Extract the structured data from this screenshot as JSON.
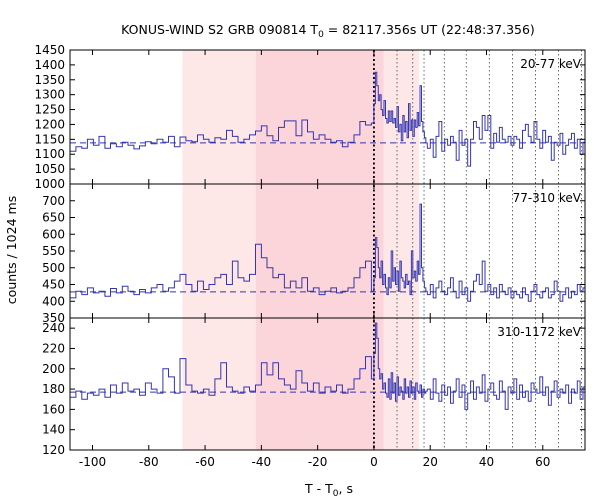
{
  "chart_data": {
    "type": "line",
    "title": "KONUS-WIND S2 GRB 090814 T",
    "title_sub": "0",
    "title_rest": " = 82117.356s UT (22:48:37.356)",
    "xlabel": "T - T",
    "xlabel_sub": "0",
    "xlabel_rest": ", s",
    "ylabel": "counts / 1024 ms",
    "xlim": [
      -108,
      75
    ],
    "x_ticks": [
      -100,
      -80,
      -60,
      -40,
      -20,
      0,
      20,
      40,
      60
    ],
    "x_tick_labels": [
      "-100",
      "-80",
      "-60",
      "-40",
      "-20",
      "0",
      "20",
      "40",
      "60"
    ],
    "shaded_regions": [
      {
        "x0": -68,
        "x1": -42,
        "color": "#fde7e7"
      },
      {
        "x0": -42,
        "x1": 3.5,
        "color": "#fbd5da"
      },
      {
        "x0": 3.5,
        "x1": 16,
        "color": "#fde7e7"
      }
    ],
    "t0_line": 0,
    "dotted_lines": [
      8.2,
      13.8,
      17.8,
      25,
      32.8,
      41,
      49.2,
      57.4,
      65.6,
      73.8
    ],
    "line_color": "#3535b0",
    "panels": [
      {
        "band": "20-77 keV",
        "ylim": [
          1000,
          1450
        ],
        "yticks": [
          1000,
          1050,
          1100,
          1150,
          1200,
          1250,
          1300,
          1350,
          1400,
          1450
        ],
        "background": 1138,
        "coarse_edges": [
          -108,
          -105.9,
          -103.8,
          -101.8,
          -99.7,
          -97.7,
          -95.6,
          -93.6,
          -91.5,
          -89.4,
          -87.4,
          -85.3,
          -83.3,
          -81.2,
          -79.1,
          -77.1,
          -75.0,
          -73.0,
          -70.9,
          -68.9,
          -66.8,
          -64.7,
          -62.7,
          -60.6,
          -58.6,
          -56.5,
          -54.4,
          -52.4,
          -50.3,
          -48.3,
          -46.2,
          -44.2,
          -42.1,
          -40.0,
          -38.0,
          -35.9,
          -33.9,
          -31.8,
          -29.7,
          -27.7,
          -25.6,
          -23.6,
          -21.5,
          -19.5,
          -17.4,
          -15.3,
          -13.3,
          -11.2,
          -9.2,
          -7.1,
          -5.0,
          -3.0,
          -0.9,
          0
        ],
        "coarse_values": [
          1110,
          1125,
          1120,
          1150,
          1130,
          1160,
          1120,
          1135,
          1125,
          1140,
          1130,
          1118,
          1128,
          1142,
          1135,
          1150,
          1140,
          1160,
          1125,
          1158,
          1145,
          1142,
          1165,
          1150,
          1140,
          1155,
          1150,
          1180,
          1160,
          1140,
          1150,
          1165,
          1178,
          1195,
          1162,
          1145,
          1190,
          1212,
          1212,
          1162,
          1215,
          1175,
          1150,
          1165,
          1150,
          1140,
          1145,
          1125,
          1140,
          1165,
          1210,
          1198,
          1205
        ],
        "fine_start": 0,
        "fine_step": 0.512,
        "fine_values": [
          1270,
          1375,
          1330,
          1280,
          1300,
          1250,
          1230,
          1280,
          1220,
          1205,
          1245,
          1210,
          1245,
          1205,
          1220,
          1190,
          1260,
          1175,
          1200,
          1145,
          1230,
          1175,
          1210,
          1155,
          1270,
          1180,
          1215,
          1160,
          1215,
          1190,
          1240,
          1195,
          1330,
          1210,
          1175,
          1155,
          1138
        ],
        "tail_start": 19,
        "tail_step": 1.024,
        "tail_values": [
          1120,
          1150,
          1090,
          1160,
          1210,
          1110,
          1150,
          1130,
          1160,
          1140,
          1080,
          1180,
          1130,
          1150,
          1060,
          1150,
          1210,
          1190,
          1150,
          1230,
          1180,
          1230,
          1120,
          1170,
          1140,
          1190,
          1150,
          1140,
          1160,
          1130,
          1160,
          1150,
          1120,
          1180,
          1200,
          1160,
          1140,
          1210,
          1150,
          1120,
          1180,
          1140,
          1160,
          1080,
          1140,
          1130,
          1170,
          1100,
          1130,
          1150,
          1170,
          1120,
          1150,
          1100,
          1140,
          1160
        ]
      },
      {
        "band": "77-310 keV",
        "ylim": [
          350,
          750
        ],
        "yticks": [
          350,
          400,
          450,
          500,
          550,
          600,
          650,
          700
        ],
        "background": 428,
        "coarse_edges": [
          -108,
          -105.9,
          -103.8,
          -101.8,
          -99.7,
          -97.7,
          -95.6,
          -93.6,
          -91.5,
          -89.4,
          -87.4,
          -85.3,
          -83.3,
          -81.2,
          -79.1,
          -77.1,
          -75.0,
          -73.0,
          -70.9,
          -68.9,
          -66.8,
          -64.7,
          -62.7,
          -60.6,
          -58.6,
          -56.5,
          -54.4,
          -52.4,
          -50.3,
          -48.3,
          -46.2,
          -44.2,
          -42.1,
          -40.0,
          -38.0,
          -35.9,
          -33.9,
          -31.8,
          -29.7,
          -27.7,
          -25.6,
          -23.6,
          -21.5,
          -19.5,
          -17.4,
          -15.3,
          -13.3,
          -11.2,
          -9.2,
          -7.1,
          -5.0,
          -3.0,
          -0.9,
          0
        ],
        "coarse_values": [
          410,
          430,
          420,
          440,
          425,
          430,
          415,
          438,
          425,
          445,
          430,
          420,
          435,
          425,
          440,
          450,
          430,
          440,
          460,
          480,
          450,
          430,
          460,
          435,
          450,
          470,
          480,
          450,
          520,
          470,
          460,
          480,
          570,
          530,
          500,
          470,
          480,
          440,
          460,
          440,
          470,
          430,
          440,
          420,
          430,
          440,
          425,
          430,
          440,
          470,
          500,
          520,
          430
        ],
        "fine_start": 0,
        "fine_step": 0.512,
        "fine_values": [
          470,
          590,
          560,
          500,
          470,
          520,
          450,
          480,
          440,
          420,
          470,
          440,
          550,
          460,
          500,
          450,
          490,
          430,
          520,
          470,
          460,
          440,
          480,
          450,
          460,
          420,
          550,
          470,
          490,
          460,
          520,
          480,
          690,
          500,
          460,
          440,
          430
        ],
        "tail_start": 19,
        "tail_step": 1.024,
        "tail_values": [
          420,
          450,
          410,
          440,
          460,
          430,
          420,
          440,
          470,
          430,
          410,
          460,
          420,
          440,
          400,
          430,
          460,
          480,
          450,
          520,
          430,
          450,
          420,
          440,
          410,
          450,
          430,
          420,
          440,
          410,
          430,
          420,
          410,
          440,
          420,
          400,
          430,
          450,
          420,
          410,
          430,
          440,
          410,
          420,
          460,
          430,
          400,
          420,
          440,
          410,
          430,
          420,
          450,
          430,
          440,
          430
        ]
      },
      {
        "band": "310-1172 keV",
        "ylim": [
          120,
          250
        ],
        "yticks": [
          120,
          140,
          160,
          180,
          200,
          220,
          240
        ],
        "background": 177,
        "coarse_edges": [
          -108,
          -105.9,
          -103.8,
          -101.8,
          -99.7,
          -97.7,
          -95.6,
          -93.6,
          -91.5,
          -89.4,
          -87.4,
          -85.3,
          -83.3,
          -81.2,
          -79.1,
          -77.1,
          -75.0,
          -73.0,
          -70.9,
          -68.9,
          -66.8,
          -64.7,
          -62.7,
          -60.6,
          -58.6,
          -56.5,
          -54.4,
          -52.4,
          -50.3,
          -48.3,
          -46.2,
          -44.2,
          -42.1,
          -40.0,
          -38.0,
          -35.9,
          -33.9,
          -31.8,
          -29.7,
          -27.7,
          -25.6,
          -23.6,
          -21.5,
          -19.5,
          -17.4,
          -15.3,
          -13.3,
          -11.2,
          -9.2,
          -7.1,
          -5.0,
          -3.0,
          -0.9,
          0
        ],
        "coarse_values": [
          172,
          178,
          170,
          176,
          174,
          180,
          172,
          184,
          176,
          186,
          178,
          180,
          174,
          186,
          180,
          176,
          200,
          192,
          176,
          210,
          184,
          178,
          176,
          180,
          174,
          190,
          206,
          182,
          178,
          176,
          182,
          178,
          184,
          206,
          194,
          206,
          190,
          184,
          180,
          198,
          186,
          178,
          186,
          176,
          182,
          178,
          184,
          176,
          180,
          190,
          200,
          212,
          190
        ],
        "fine_start": 0,
        "fine_step": 0.512,
        "fine_values": [
          215,
          245,
          230,
          200,
          190,
          195,
          180,
          186,
          176,
          172,
          190,
          170,
          196,
          176,
          186,
          168,
          192,
          174,
          182,
          178,
          170,
          190,
          176,
          182,
          172,
          188,
          176,
          182,
          170,
          186,
          178,
          176,
          184,
          172,
          180,
          176,
          178
        ],
        "tail_start": 19,
        "tail_step": 1.024,
        "tail_values": [
          180,
          170,
          190,
          176,
          168,
          184,
          174,
          182,
          166,
          178,
          190,
          172,
          184,
          160,
          176,
          188,
          170,
          182,
          176,
          194,
          168,
          180,
          186,
          174,
          170,
          188,
          178,
          160,
          182,
          176,
          190,
          170,
          184,
          172,
          178,
          168,
          186,
          180,
          176,
          192,
          174,
          182,
          164,
          178,
          188,
          172,
          180,
          176,
          184,
          166,
          180,
          176,
          188,
          170,
          182,
          178
        ]
      }
    ]
  }
}
